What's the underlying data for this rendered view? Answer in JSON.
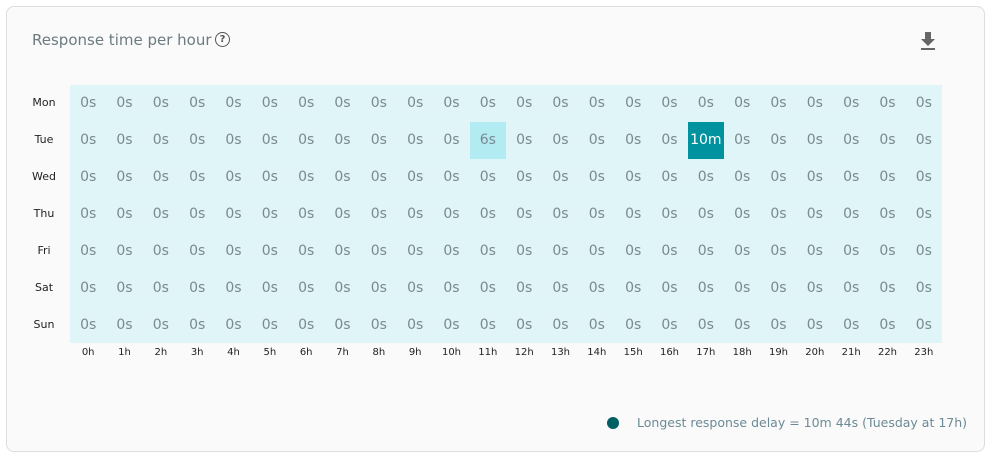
{
  "header": {
    "title": "Response time per hour",
    "help_icon": "help-circle-icon",
    "download_icon": "download-icon"
  },
  "legend": {
    "text": "Longest response delay = 10m 44s (Tuesday at 17h)",
    "color": "#005f63"
  },
  "chart_data": {
    "type": "heatmap",
    "title": "Response time per hour",
    "rows": [
      "Mon",
      "Tue",
      "Wed",
      "Thu",
      "Fri",
      "Sat",
      "Sun"
    ],
    "columns": [
      "0h",
      "1h",
      "2h",
      "3h",
      "4h",
      "5h",
      "6h",
      "7h",
      "8h",
      "9h",
      "10h",
      "11h",
      "12h",
      "13h",
      "14h",
      "15h",
      "16h",
      "17h",
      "18h",
      "19h",
      "20h",
      "21h",
      "22h",
      "23h"
    ],
    "unit": "seconds",
    "values": [
      [
        0,
        0,
        0,
        0,
        0,
        0,
        0,
        0,
        0,
        0,
        0,
        0,
        0,
        0,
        0,
        0,
        0,
        0,
        0,
        0,
        0,
        0,
        0,
        0
      ],
      [
        0,
        0,
        0,
        0,
        0,
        0,
        0,
        0,
        0,
        0,
        0,
        6,
        0,
        0,
        0,
        0,
        0,
        644,
        0,
        0,
        0,
        0,
        0,
        0
      ],
      [
        0,
        0,
        0,
        0,
        0,
        0,
        0,
        0,
        0,
        0,
        0,
        0,
        0,
        0,
        0,
        0,
        0,
        0,
        0,
        0,
        0,
        0,
        0,
        0
      ],
      [
        0,
        0,
        0,
        0,
        0,
        0,
        0,
        0,
        0,
        0,
        0,
        0,
        0,
        0,
        0,
        0,
        0,
        0,
        0,
        0,
        0,
        0,
        0,
        0
      ],
      [
        0,
        0,
        0,
        0,
        0,
        0,
        0,
        0,
        0,
        0,
        0,
        0,
        0,
        0,
        0,
        0,
        0,
        0,
        0,
        0,
        0,
        0,
        0,
        0
      ],
      [
        0,
        0,
        0,
        0,
        0,
        0,
        0,
        0,
        0,
        0,
        0,
        0,
        0,
        0,
        0,
        0,
        0,
        0,
        0,
        0,
        0,
        0,
        0,
        0
      ],
      [
        0,
        0,
        0,
        0,
        0,
        0,
        0,
        0,
        0,
        0,
        0,
        0,
        0,
        0,
        0,
        0,
        0,
        0,
        0,
        0,
        0,
        0,
        0,
        0
      ]
    ],
    "colors": {
      "empty": "#dff5f8",
      "low": "#b2ebf2",
      "max": "#00939f"
    }
  }
}
